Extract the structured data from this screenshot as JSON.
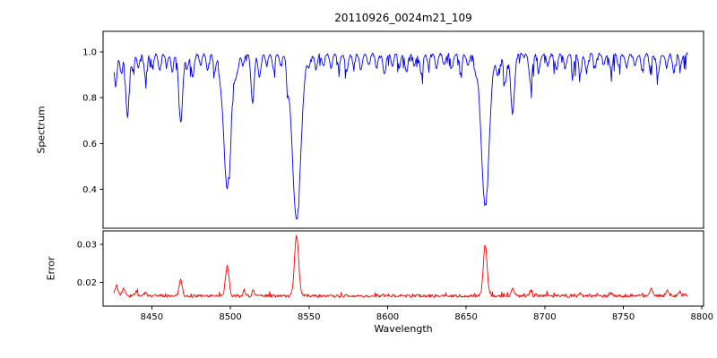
{
  "chart_data": {
    "type": "line",
    "title": "20110926_0024m21_109",
    "xlabel": "Wavelength",
    "grid": false,
    "legend": "none",
    "xlim": [
      8419,
      8801
    ],
    "x_range": [
      8426,
      8791
    ],
    "xticks": [
      8450,
      8500,
      8550,
      8600,
      8650,
      8700,
      8750,
      8800
    ],
    "xtick_labels": [
      "8450",
      "8500",
      "8550",
      "8600",
      "8650",
      "8700",
      "8750",
      "8800"
    ],
    "panels": [
      {
        "name": "spectrum",
        "ylabel": "Spectrum",
        "color": "#0000ff",
        "ylim": [
          0.23,
          1.09
        ],
        "yticks": [
          0.4,
          0.6,
          0.8,
          1.0
        ],
        "ytick_labels": [
          "0.4",
          "0.6",
          "0.8",
          "1.0"
        ],
        "continuum": 0.99,
        "noise_level": 0.006,
        "seed": 42,
        "absorption_lines": [
          [
            8424.0,
            0.09,
            0.8
          ],
          [
            8427.0,
            0.14,
            0.9
          ],
          [
            8430.5,
            0.08,
            0.8
          ],
          [
            8434.5,
            0.27,
            1.1
          ],
          [
            8438.0,
            0.07,
            0.8
          ],
          [
            8441.5,
            0.06,
            0.8
          ],
          [
            8446.0,
            0.1,
            0.9
          ],
          [
            8450.5,
            0.05,
            0.8
          ],
          [
            8455.0,
            0.07,
            0.8
          ],
          [
            8459.5,
            0.05,
            0.8
          ],
          [
            8463.0,
            0.08,
            0.8
          ],
          [
            8468.4,
            0.3,
            1.2
          ],
          [
            8472.5,
            0.06,
            0.8
          ],
          [
            8476.0,
            0.1,
            0.9
          ],
          [
            8481.0,
            0.05,
            0.8
          ],
          [
            8485.5,
            0.07,
            0.8
          ],
          [
            8490.0,
            0.08,
            0.8
          ],
          [
            8493.5,
            0.05,
            0.8
          ],
          [
            8498.0,
            0.585,
            2.3
          ],
          [
            8504.5,
            0.07,
            0.8
          ],
          [
            8508.0,
            0.05,
            0.8
          ],
          [
            8514.1,
            0.21,
            1.0
          ],
          [
            8518.5,
            0.1,
            0.9
          ],
          [
            8523.0,
            0.05,
            0.8
          ],
          [
            8527.5,
            0.07,
            0.8
          ],
          [
            8532.0,
            0.05,
            0.8
          ],
          [
            8536.5,
            0.08,
            0.8
          ],
          [
            8542.1,
            0.725,
            2.7
          ],
          [
            8550.0,
            0.05,
            0.8
          ],
          [
            8554.5,
            0.07,
            0.8
          ],
          [
            8559.0,
            0.05,
            0.8
          ],
          [
            8564.0,
            0.06,
            0.8
          ],
          [
            8569.0,
            0.05,
            0.8
          ],
          [
            8574.0,
            0.08,
            0.9
          ],
          [
            8578.5,
            0.05,
            0.8
          ],
          [
            8583.0,
            0.07,
            0.8
          ],
          [
            8588.0,
            0.05,
            0.8
          ],
          [
            8593.0,
            0.06,
            0.8
          ],
          [
            8598.0,
            0.09,
            0.9
          ],
          [
            8603.0,
            0.05,
            0.8
          ],
          [
            8607.5,
            0.06,
            0.8
          ],
          [
            8612.0,
            0.08,
            0.9
          ],
          [
            8617.0,
            0.05,
            0.8
          ],
          [
            8621.5,
            0.09,
            0.9
          ],
          [
            8626.0,
            0.05,
            0.8
          ],
          [
            8631.0,
            0.06,
            0.8
          ],
          [
            8636.0,
            0.05,
            0.8
          ],
          [
            8641.0,
            0.06,
            0.8
          ],
          [
            8646.5,
            0.08,
            0.8
          ],
          [
            8651.0,
            0.05,
            0.8
          ],
          [
            8656.0,
            0.06,
            0.8
          ],
          [
            8662.1,
            0.66,
            2.5
          ],
          [
            8670.0,
            0.09,
            0.9
          ],
          [
            8674.8,
            0.13,
            1.0
          ],
          [
            8679.5,
            0.26,
            1.2
          ],
          [
            8691.0,
            0.13,
            1.0
          ],
          [
            8696.5,
            0.06,
            0.8
          ],
          [
            8702.0,
            0.05,
            0.8
          ],
          [
            8707.5,
            0.07,
            0.8
          ],
          [
            8713.0,
            0.06,
            0.8
          ],
          [
            8718.0,
            0.05,
            0.8
          ],
          [
            8722.5,
            0.09,
            0.9
          ],
          [
            8727.0,
            0.05,
            0.8
          ],
          [
            8732.0,
            0.06,
            0.8
          ],
          [
            8737.5,
            0.05,
            0.8
          ],
          [
            8742.0,
            0.07,
            0.8
          ],
          [
            8747.0,
            0.05,
            0.8
          ],
          [
            8752.0,
            0.06,
            0.8
          ],
          [
            8757.5,
            0.05,
            0.8
          ],
          [
            8762.0,
            0.07,
            0.8
          ],
          [
            8767.0,
            0.06,
            0.8
          ],
          [
            8772.0,
            0.09,
            0.9
          ],
          [
            8777.5,
            0.06,
            0.8
          ],
          [
            8782.0,
            0.08,
            0.8
          ],
          [
            8786.5,
            0.05,
            0.8
          ]
        ]
      },
      {
        "name": "error",
        "ylabel": "Error",
        "color": "#ff0000",
        "ylim": [
          0.0138,
          0.0335
        ],
        "yticks": [
          0.02,
          0.03
        ],
        "ytick_labels": [
          "0.02",
          "0.03"
        ],
        "baseline": 0.01645,
        "noise_level": 0.0004,
        "seed": 99,
        "peaks": [
          [
            8427.5,
            0.0028,
            1.0
          ],
          [
            8432.0,
            0.002,
            0.9
          ],
          [
            8440.0,
            0.001,
            0.8
          ],
          [
            8446.0,
            0.001,
            0.8
          ],
          [
            8468.4,
            0.004,
            1.0
          ],
          [
            8498.0,
            0.0078,
            1.1
          ],
          [
            8509.0,
            0.0012,
            0.8
          ],
          [
            8514.5,
            0.0015,
            0.8
          ],
          [
            8542.1,
            0.0158,
            1.3
          ],
          [
            8662.1,
            0.0133,
            1.2
          ],
          [
            8679.5,
            0.002,
            0.9
          ],
          [
            8691.0,
            0.0013,
            0.8
          ],
          [
            8722.5,
            0.0008,
            0.8
          ],
          [
            8742.0,
            0.0007,
            0.8
          ],
          [
            8768.0,
            0.0018,
            0.9
          ],
          [
            8778.0,
            0.0016,
            0.9
          ],
          [
            8786.0,
            0.001,
            0.8
          ]
        ]
      }
    ]
  }
}
